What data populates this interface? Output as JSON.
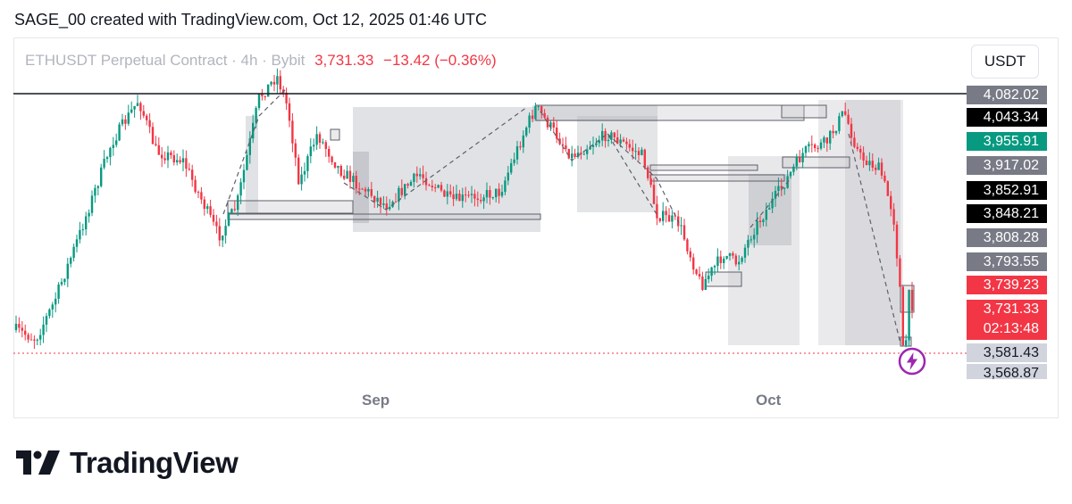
{
  "header": {
    "attribution": "SAGE_00 created with TradingView.com, Oct 12, 2025 01:46 UTC"
  },
  "legend": {
    "symbol": "ETHUSDT Perpetual Contract · 4h · Bybit",
    "price": "3,731.33",
    "change": "−13.42 (−0.36%)"
  },
  "currency": "USDT",
  "brand": {
    "name": "TradingView",
    "logo_icon": "tradingview-logo-icon"
  },
  "chart_data": {
    "type": "candlestick",
    "symbol": "ETHUSDT Perpetual Contract",
    "interval": "4h",
    "exchange": "Bybit",
    "currency": "USDT",
    "x_ticks": [
      "Sep",
      "Oct"
    ],
    "last_price": 3731.33,
    "last_change": -13.42,
    "last_change_pct": -0.36,
    "countdown": "02:13:48",
    "resistance_level": 4082.02,
    "price_axis_labels": [
      {
        "text": "4,082.02",
        "value": 4082.02,
        "bg": "#787b86",
        "fg": "#ffffff"
      },
      {
        "text": "4,043.34",
        "value": 4043.34,
        "bg": "#000000",
        "fg": "#ffffff"
      },
      {
        "text": "3,955.91",
        "value": 3955.91,
        "bg": "#089981",
        "fg": "#ffffff"
      },
      {
        "text": "3,917.02",
        "value": 3917.02,
        "bg": "#787b86",
        "fg": "#ffffff"
      },
      {
        "text": "3,852.91",
        "value": 3852.91,
        "bg": "#000000",
        "fg": "#ffffff"
      },
      {
        "text": "3,848.21",
        "value": 3848.21,
        "bg": "#000000",
        "fg": "#ffffff"
      },
      {
        "text": "3,808.28",
        "value": 3808.28,
        "bg": "#787b86",
        "fg": "#ffffff"
      },
      {
        "text": "3,793.55",
        "value": 3793.55,
        "bg": "#787b86",
        "fg": "#ffffff"
      },
      {
        "text": "3,739.23",
        "value": 3739.23,
        "bg": "#f23645",
        "fg": "#ffffff"
      },
      {
        "text": "3,581.43",
        "value": 3581.43,
        "bg": "#d1d4dc",
        "fg": "#131722"
      },
      {
        "text": "3,568.87",
        "value": 3568.87,
        "bg": "#d1d4dc",
        "fg": "#131722"
      }
    ],
    "colors": {
      "up": "#089981",
      "down": "#f23645",
      "zone": "#b2b5be",
      "line": "#131722"
    }
  }
}
